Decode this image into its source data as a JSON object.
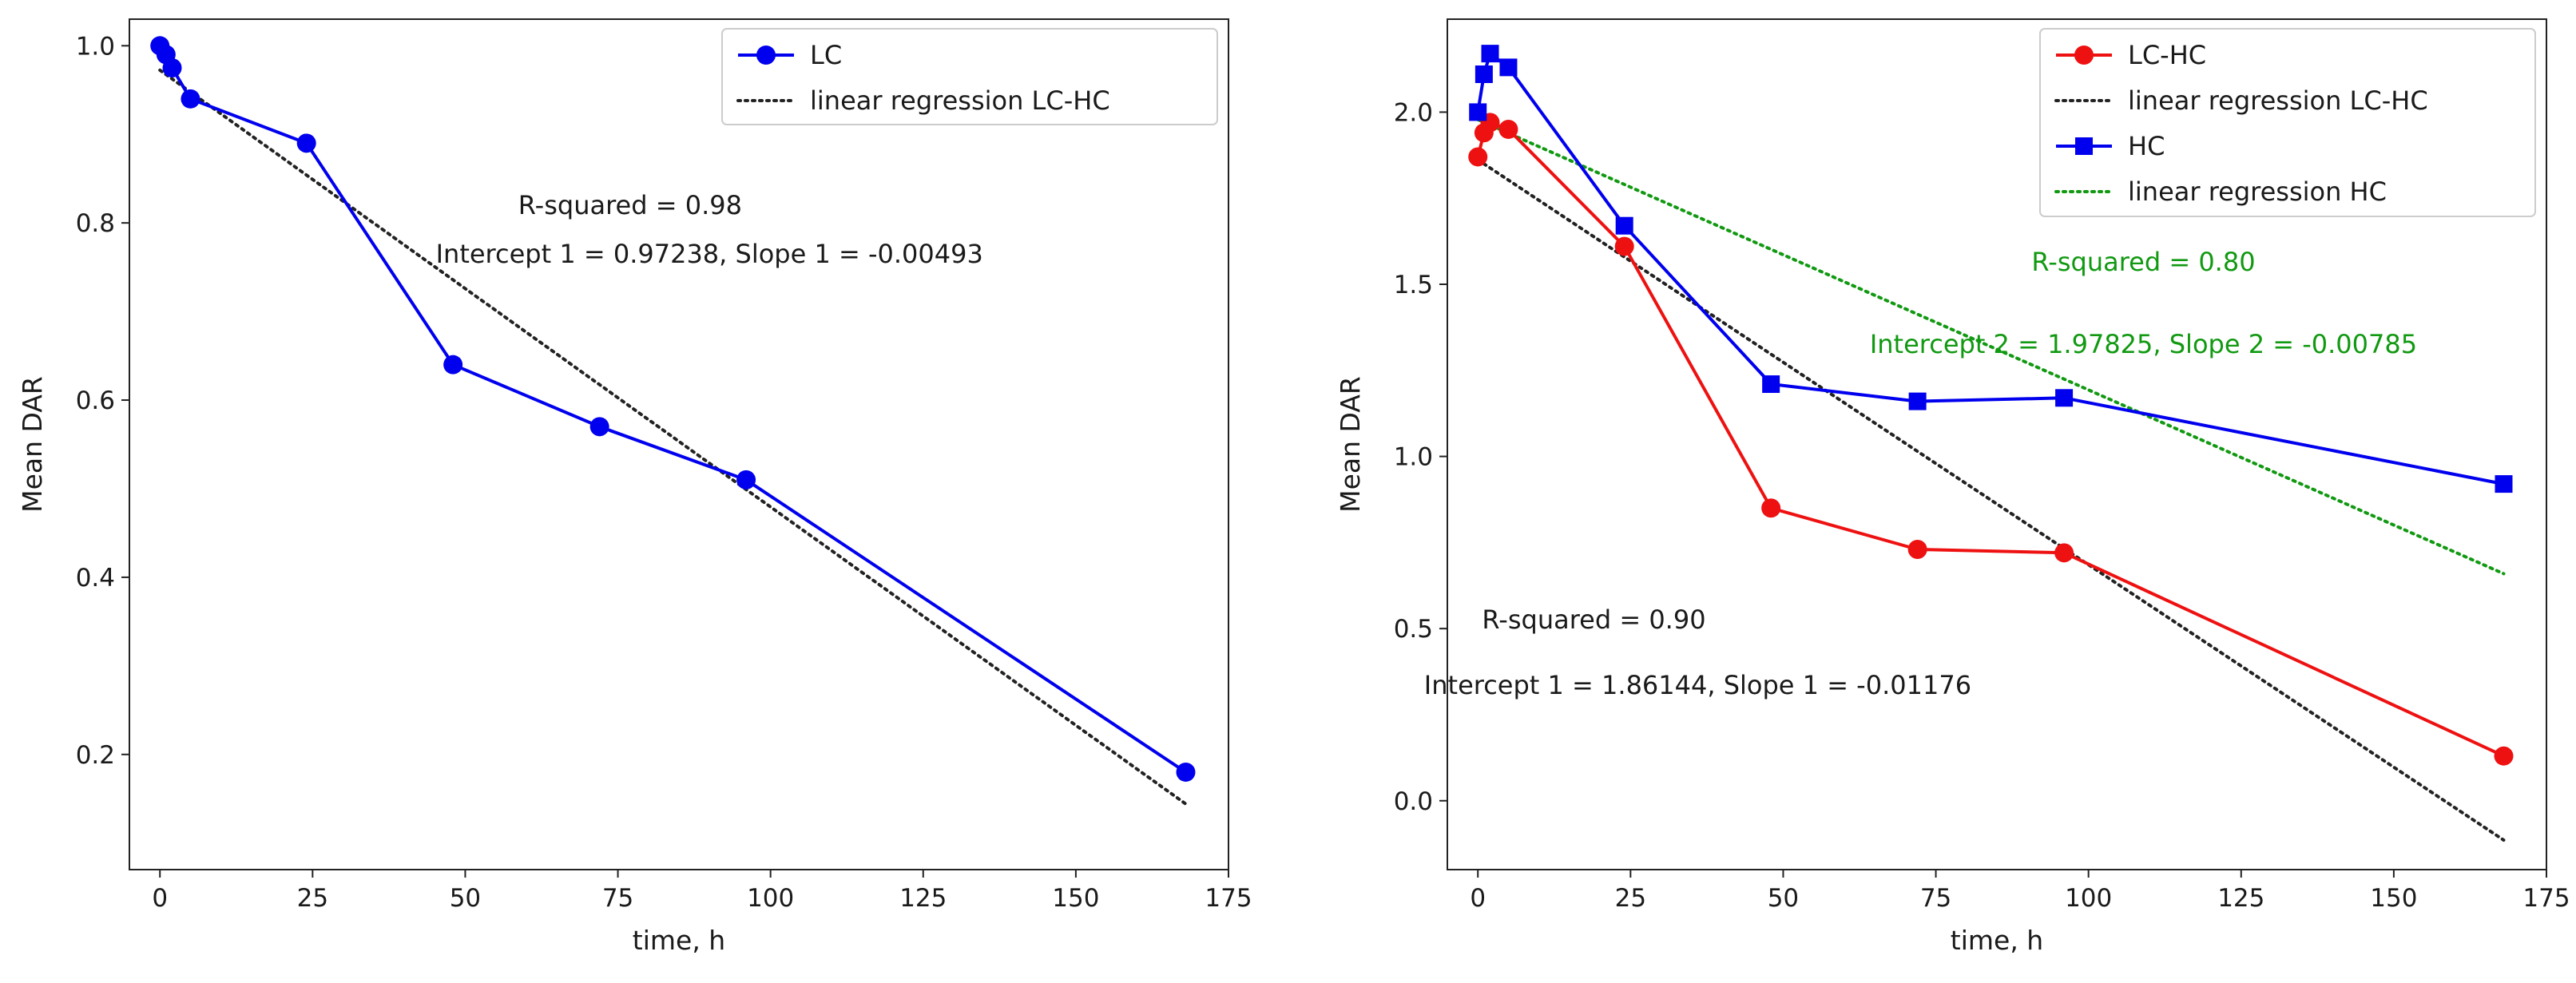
{
  "chart_data": [
    {
      "type": "line",
      "xlabel": "time, h",
      "ylabel": "Mean DAR",
      "xlim": [
        -5,
        175
      ],
      "ylim": [
        0.07,
        1.03
      ],
      "xticks": [
        0,
        25,
        50,
        75,
        100,
        125,
        150,
        175
      ],
      "yticks": [
        0.2,
        0.4,
        0.6,
        0.8,
        1.0
      ],
      "ytick_decimals": 1,
      "legend_position": "top-right",
      "series": [
        {
          "name": "LC",
          "kind": "data",
          "marker": "circle",
          "color": "#0000ee",
          "x": [
            0,
            1,
            2,
            5,
            24,
            48,
            72,
            96,
            168
          ],
          "y": [
            1.0,
            0.99,
            0.975,
            0.94,
            0.89,
            0.64,
            0.57,
            0.51,
            0.18
          ]
        },
        {
          "name": "linear regression LC-HC",
          "kind": "regression",
          "color": "#222222",
          "intercept": 0.97238,
          "slope": -0.00493,
          "x_range": [
            0,
            168
          ]
        }
      ],
      "annotations": [
        {
          "text": "R-squared = 0.98",
          "x": 77,
          "y": 0.81,
          "color": "#1a1a1a"
        },
        {
          "text": "Intercept 1 = 0.97238, Slope 1 = -0.00493",
          "x": 90,
          "y": 0.755,
          "color": "#1a1a1a"
        }
      ]
    },
    {
      "type": "line",
      "xlabel": "time, h",
      "ylabel": "Mean DAR",
      "xlim": [
        -5,
        175
      ],
      "ylim": [
        -0.2,
        2.27
      ],
      "xticks": [
        0,
        25,
        50,
        75,
        100,
        125,
        150,
        175
      ],
      "yticks": [
        0.0,
        0.5,
        1.0,
        1.5,
        2.0
      ],
      "ytick_decimals": 1,
      "legend_position": "top-right",
      "series": [
        {
          "name": "LC-HC",
          "kind": "data",
          "marker": "circle",
          "color": "#ee1111",
          "x": [
            0,
            1,
            2,
            5,
            24,
            48,
            72,
            96,
            168
          ],
          "y": [
            1.87,
            1.94,
            1.97,
            1.95,
            1.61,
            0.85,
            0.73,
            0.72,
            0.13
          ]
        },
        {
          "name": "linear regression LC-HC",
          "kind": "regression",
          "color": "#222222",
          "intercept": 1.86144,
          "slope": -0.01176,
          "x_range": [
            0,
            168
          ]
        },
        {
          "name": "HC",
          "kind": "data",
          "marker": "square",
          "color": "#0000ee",
          "x": [
            0,
            1,
            2,
            5,
            24,
            48,
            72,
            96,
            168
          ],
          "y": [
            2.0,
            2.11,
            2.17,
            2.13,
            1.67,
            1.21,
            1.16,
            1.17,
            0.92
          ]
        },
        {
          "name": "linear regression HC",
          "kind": "regression",
          "color": "#119911",
          "intercept": 1.97825,
          "slope": -0.00785,
          "x_range": [
            0,
            168
          ]
        }
      ],
      "annotations": [
        {
          "text": "R-squared = 0.80",
          "x": 109,
          "y": 1.54,
          "color": "#119911"
        },
        {
          "text": "Intercept 2 = 1.97825, Slope 2 = -0.00785",
          "x": 109,
          "y": 1.3,
          "color": "#119911"
        },
        {
          "text": "R-squared = 0.90",
          "x": 19,
          "y": 0.5,
          "color": "#1a1a1a"
        },
        {
          "text": "Intercept 1 = 1.86144, Slope 1 = -0.01176",
          "x": 36,
          "y": 0.31,
          "color": "#1a1a1a"
        }
      ]
    }
  ]
}
